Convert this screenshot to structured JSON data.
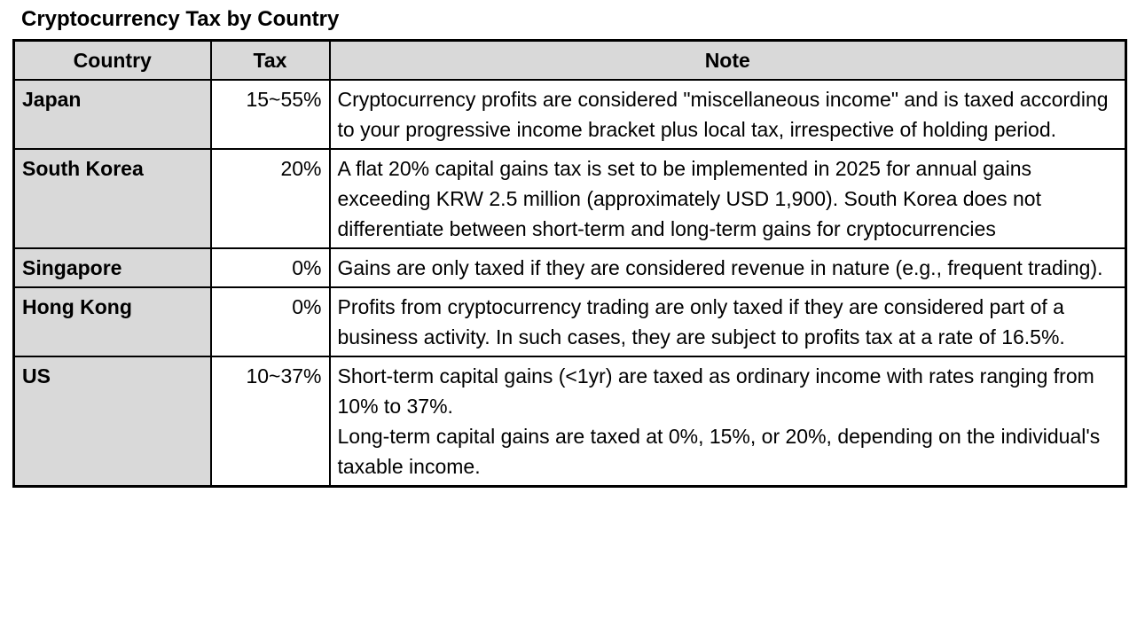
{
  "title": "Cryptocurrency Tax by Country",
  "table": {
    "headers": [
      "Country",
      "Tax",
      "Note"
    ],
    "rows": [
      {
        "country": "Japan",
        "tax": "15~55%",
        "note": "Cryptocurrency profits are considered \"miscellaneous income\" and is taxed according to your progressive income bracket plus local tax, irrespective of holding period."
      },
      {
        "country": "South Korea",
        "tax": "20%",
        "note": "A flat 20% capital gains tax is set to be implemented in 2025 for annual gains exceeding KRW 2.5 million (approximately USD 1,900). South Korea does not differentiate between short-term and long-term gains for cryptocurrencies"
      },
      {
        "country": "Singapore",
        "tax": "0%",
        "note": "Gains are only taxed if they are considered revenue in nature (e.g., frequent trading)."
      },
      {
        "country": "Hong Kong",
        "tax": "0%",
        "note": "Profits from cryptocurrency trading are only taxed if they are considered part of a business activity. In such cases, they are subject to profits tax at a rate of 16.5%."
      },
      {
        "country": "US",
        "tax": "10~37%",
        "note": "Short-term capital gains (<1yr) are taxed as ordinary income with rates ranging from 10% to 37%.\nLong-term capital gains are taxed at 0%, 15%, or 20%, depending on the individual's taxable income."
      }
    ],
    "colors": {
      "header_bg": "#d9d9d9",
      "country_col_bg": "#d9d9d9",
      "border": "#000000",
      "text": "#000000"
    }
  }
}
